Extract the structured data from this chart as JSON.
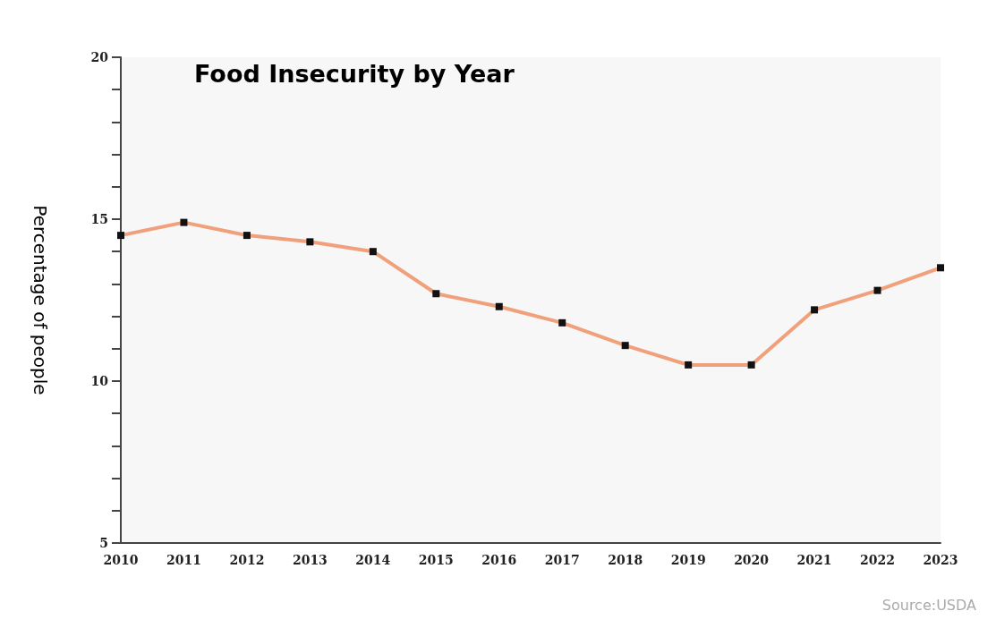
{
  "chart_data": {
    "type": "line",
    "title": "Food Insecurity by Year",
    "ylabel": "Percentage of people",
    "categories": [
      "2010",
      "2011",
      "2012",
      "2013",
      "2014",
      "2015",
      "2016",
      "2017",
      "2018",
      "2019",
      "2020",
      "2021",
      "2022",
      "2023"
    ],
    "series": [
      {
        "color": "#f0a07a",
        "values": [
          14.5,
          14.9,
          14.5,
          14.3,
          14.0,
          12.7,
          12.3,
          11.8,
          11.1,
          10.5,
          10.5,
          12.2,
          12.8,
          13.5
        ]
      }
    ],
    "ylim": [
      5,
      20
    ],
    "yticks": [
      5,
      {
        "value": 6,
        "label": null
      },
      {
        "value": 7,
        "label": null
      },
      {
        "value": 8,
        "label": null
      },
      {
        "value": 9,
        "label": null
      },
      10,
      {
        "value": 11,
        "label": null
      },
      {
        "value": 12,
        "label": null
      },
      {
        "value": 13,
        "label": null
      },
      {
        "value": 14,
        "label": null
      },
      15,
      {
        "value": 16,
        "label": null
      },
      {
        "value": 17,
        "label": null
      },
      {
        "value": 18,
        "label": null
      },
      {
        "value": 19,
        "label": null
      },
      20
    ],
    "marker": "square",
    "line_style": "solid",
    "grid": false,
    "annotations": [
      "Source:USDA"
    ]
  }
}
